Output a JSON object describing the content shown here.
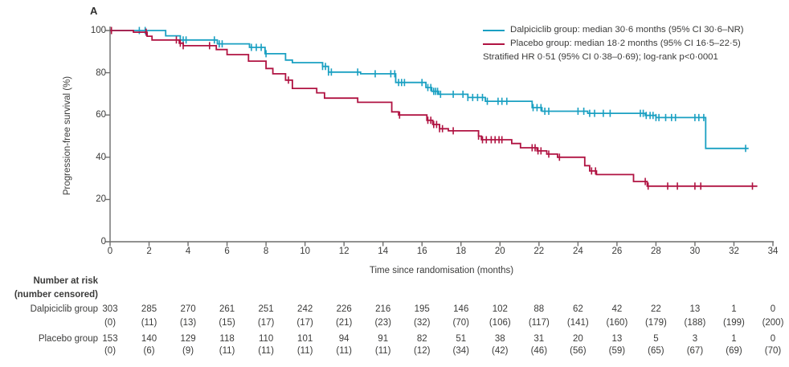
{
  "panel_label": "A",
  "colors": {
    "dalpiciclib": "#1aa0c2",
    "placebo": "#b01342",
    "axis": "#6d6d6c",
    "text": "#3b3b3a"
  },
  "legend": {
    "items": [
      {
        "series": "dalpiciclib",
        "label": "Dalpiciclib group: median 30·6 months (95% CI 30·6–NR)"
      },
      {
        "series": "placebo",
        "label": "Placebo group: median 18·2 months (95% CI 16·5–22·5)"
      }
    ],
    "annotation": "Stratified HR 0·51 (95% CI 0·38–0·69); log-rank p<0·0001"
  },
  "chart_data": {
    "type": "line",
    "subtype": "kaplan-meier-step",
    "title": "",
    "xlabel": "Time since randomisation (months)",
    "ylabel": "Progression-free survival (%)",
    "xlim": [
      0,
      34
    ],
    "ylim": [
      0,
      100
    ],
    "xticks": [
      0,
      2,
      4,
      6,
      8,
      10,
      12,
      14,
      16,
      18,
      20,
      22,
      24,
      26,
      28,
      30,
      32,
      34
    ],
    "yticks": [
      0,
      20,
      40,
      60,
      80,
      100
    ],
    "grid": false,
    "legend_position": "top-right",
    "series": [
      {
        "name": "Dalpiciclib group",
        "color": "#1aa0c2",
        "median_months": "30·6",
        "ci95": "30·6–NR",
        "steps": [
          [
            0,
            100
          ],
          [
            2.85,
            97.5
          ],
          [
            3.6,
            95.5
          ],
          [
            5.5,
            93.7
          ],
          [
            7.15,
            92
          ],
          [
            7.95,
            89
          ],
          [
            9.0,
            86
          ],
          [
            9.35,
            84.8
          ],
          [
            10.9,
            83
          ],
          [
            11.2,
            80.3
          ],
          [
            12.85,
            79.5
          ],
          [
            14.65,
            75.4
          ],
          [
            16.2,
            73
          ],
          [
            16.5,
            71.2
          ],
          [
            16.85,
            69.8
          ],
          [
            18.35,
            68.3
          ],
          [
            19.25,
            66.5
          ],
          [
            21.65,
            63.5
          ],
          [
            22.15,
            61.8
          ],
          [
            24.5,
            60.8
          ],
          [
            27.45,
            59.8
          ],
          [
            28.0,
            58.8
          ],
          [
            30.55,
            44.2
          ],
          [
            32.75,
            44.2
          ]
        ],
        "censor_times": [
          1.5,
          1.8,
          3.75,
          3.9,
          5.35,
          5.6,
          5.75,
          7.25,
          7.5,
          7.75,
          8.0,
          10.9,
          11.05,
          11.2,
          11.35,
          12.7,
          13.6,
          14.4,
          14.6,
          14.8,
          14.95,
          15.1,
          16.0,
          16.3,
          16.45,
          16.6,
          16.7,
          16.8,
          16.95,
          17.6,
          18.1,
          18.35,
          18.6,
          18.85,
          19.1,
          19.35,
          19.9,
          20.1,
          20.35,
          21.7,
          21.9,
          22.1,
          22.3,
          22.5,
          24.0,
          24.3,
          24.6,
          24.85,
          25.3,
          25.65,
          27.2,
          27.35,
          27.5,
          27.7,
          27.85,
          28.0,
          28.15,
          28.5,
          28.8,
          29.0,
          30.0,
          30.2,
          30.45,
          32.6
        ]
      },
      {
        "name": "Placebo group",
        "color": "#b01342",
        "median_months": "18·2",
        "ci95": "16·5–22·5",
        "steps": [
          [
            0,
            100
          ],
          [
            1.2,
            99.2
          ],
          [
            1.9,
            97.3
          ],
          [
            2.15,
            95.5
          ],
          [
            3.55,
            94
          ],
          [
            3.75,
            92.8
          ],
          [
            5.45,
            91
          ],
          [
            6.0,
            88.6
          ],
          [
            7.1,
            85.5
          ],
          [
            8.0,
            82
          ],
          [
            8.35,
            79.5
          ],
          [
            9.0,
            76.5
          ],
          [
            9.35,
            72.6
          ],
          [
            10.6,
            70.5
          ],
          [
            11.0,
            68
          ],
          [
            12.7,
            66
          ],
          [
            14.45,
            61.5
          ],
          [
            14.8,
            60
          ],
          [
            16.25,
            57.5
          ],
          [
            16.55,
            55.5
          ],
          [
            16.9,
            53.5
          ],
          [
            17.35,
            52.5
          ],
          [
            18.9,
            50
          ],
          [
            19.05,
            48.3
          ],
          [
            20.6,
            46.5
          ],
          [
            21.05,
            44.5
          ],
          [
            21.9,
            43
          ],
          [
            22.4,
            41.5
          ],
          [
            22.95,
            40
          ],
          [
            24.35,
            36
          ],
          [
            24.6,
            33.5
          ],
          [
            24.95,
            31.8
          ],
          [
            26.85,
            28.5
          ],
          [
            27.55,
            26.3
          ],
          [
            33.2,
            26.3
          ]
        ],
        "censor_times": [
          0.07,
          1.85,
          3.4,
          3.6,
          3.75,
          5.1,
          9.15,
          14.85,
          16.3,
          16.45,
          16.6,
          16.75,
          16.9,
          17.05,
          17.6,
          18.9,
          19.1,
          19.3,
          19.55,
          19.75,
          19.95,
          20.1,
          21.65,
          21.8,
          21.95,
          22.1,
          22.5,
          23.05,
          24.7,
          24.9,
          27.45,
          27.6,
          28.6,
          29.1,
          30.0,
          30.3,
          32.95
        ]
      }
    ]
  },
  "risk_table": {
    "header_line1": "Number at risk",
    "header_line2": "(number censored)",
    "months": [
      0,
      2,
      4,
      6,
      8,
      10,
      12,
      14,
      16,
      18,
      20,
      22,
      24,
      26,
      28,
      30,
      32,
      34
    ],
    "rows": [
      {
        "label": "Dalpiciclib group",
        "at_risk": [
          303,
          285,
          270,
          261,
          251,
          242,
          226,
          216,
          195,
          146,
          102,
          88,
          62,
          42,
          22,
          13,
          1,
          0
        ],
        "censored": [
          0,
          11,
          13,
          15,
          17,
          17,
          21,
          23,
          32,
          70,
          106,
          117,
          141,
          160,
          179,
          188,
          199,
          200
        ]
      },
      {
        "label": "Placebo group",
        "at_risk": [
          153,
          140,
          129,
          118,
          110,
          101,
          94,
          91,
          82,
          51,
          38,
          31,
          20,
          13,
          5,
          3,
          1,
          0
        ],
        "censored": [
          0,
          6,
          9,
          11,
          11,
          11,
          11,
          11,
          12,
          34,
          42,
          46,
          56,
          59,
          65,
          67,
          69,
          70
        ]
      }
    ]
  }
}
